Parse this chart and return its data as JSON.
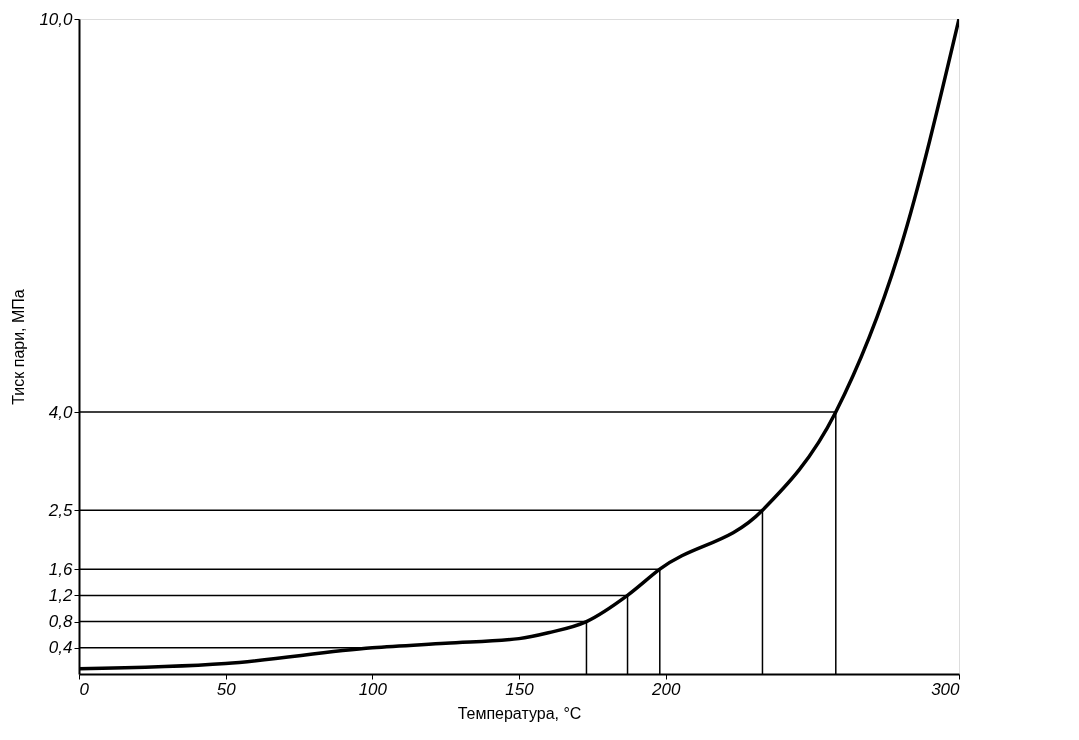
{
  "chart_data": {
    "type": "line",
    "xlabel": "Температура, °С",
    "ylabel": "Тиск пари, МПа",
    "x": [
      0,
      50,
      100,
      125,
      150,
      160,
      173,
      187,
      198,
      233,
      258,
      280,
      300
    ],
    "series": [
      {
        "color": "#000000",
        "values": [
          0.08,
          0.16,
          0.4,
          0.47,
          0.54,
          0.63,
          0.8,
          1.2,
          1.6,
          2.5,
          4.0,
          6.5,
          10.0
        ]
      },
      {
        "color": "#000000",
        "x": [
          0,
          100
        ],
        "values": [
          0.4,
          0.4
        ]
      },
      {
        "color": "#000000",
        "x": [
          0,
          173,
          173
        ],
        "values": [
          0.8,
          0.8,
          0
        ]
      },
      {
        "color": "#000000",
        "x": [
          0,
          187,
          187
        ],
        "values": [
          1.2,
          1.2,
          0
        ]
      },
      {
        "color": "#000000",
        "x": [
          0,
          198,
          198
        ],
        "values": [
          1.6,
          1.6,
          0
        ]
      },
      {
        "color": "#000000",
        "x": [
          0,
          233,
          233
        ],
        "values": [
          2.5,
          2.5,
          0
        ]
      },
      {
        "color": "#000000",
        "x": [
          0,
          258,
          258
        ],
        "values": [
          4.0,
          4.0,
          0
        ]
      }
    ],
    "xlim": [
      0,
      300
    ],
    "xticks": [
      0,
      50,
      100,
      150,
      200,
      300
    ],
    "ylim": [
      0,
      10
    ],
    "yticks": [
      {
        "value": 0.4,
        "label": "0,4"
      },
      {
        "value": 0.8,
        "label": "0,8"
      },
      {
        "value": 1.2,
        "label": "1,2"
      },
      {
        "value": 1.6,
        "label": "1,6"
      },
      {
        "value": 2.5,
        "label": "2,5"
      },
      {
        "value": 4.0,
        "label": "4,0"
      },
      {
        "value": 10.0,
        "label": "10,0"
      }
    ],
    "grid": false,
    "marker": "none",
    "line_style": "solid"
  }
}
